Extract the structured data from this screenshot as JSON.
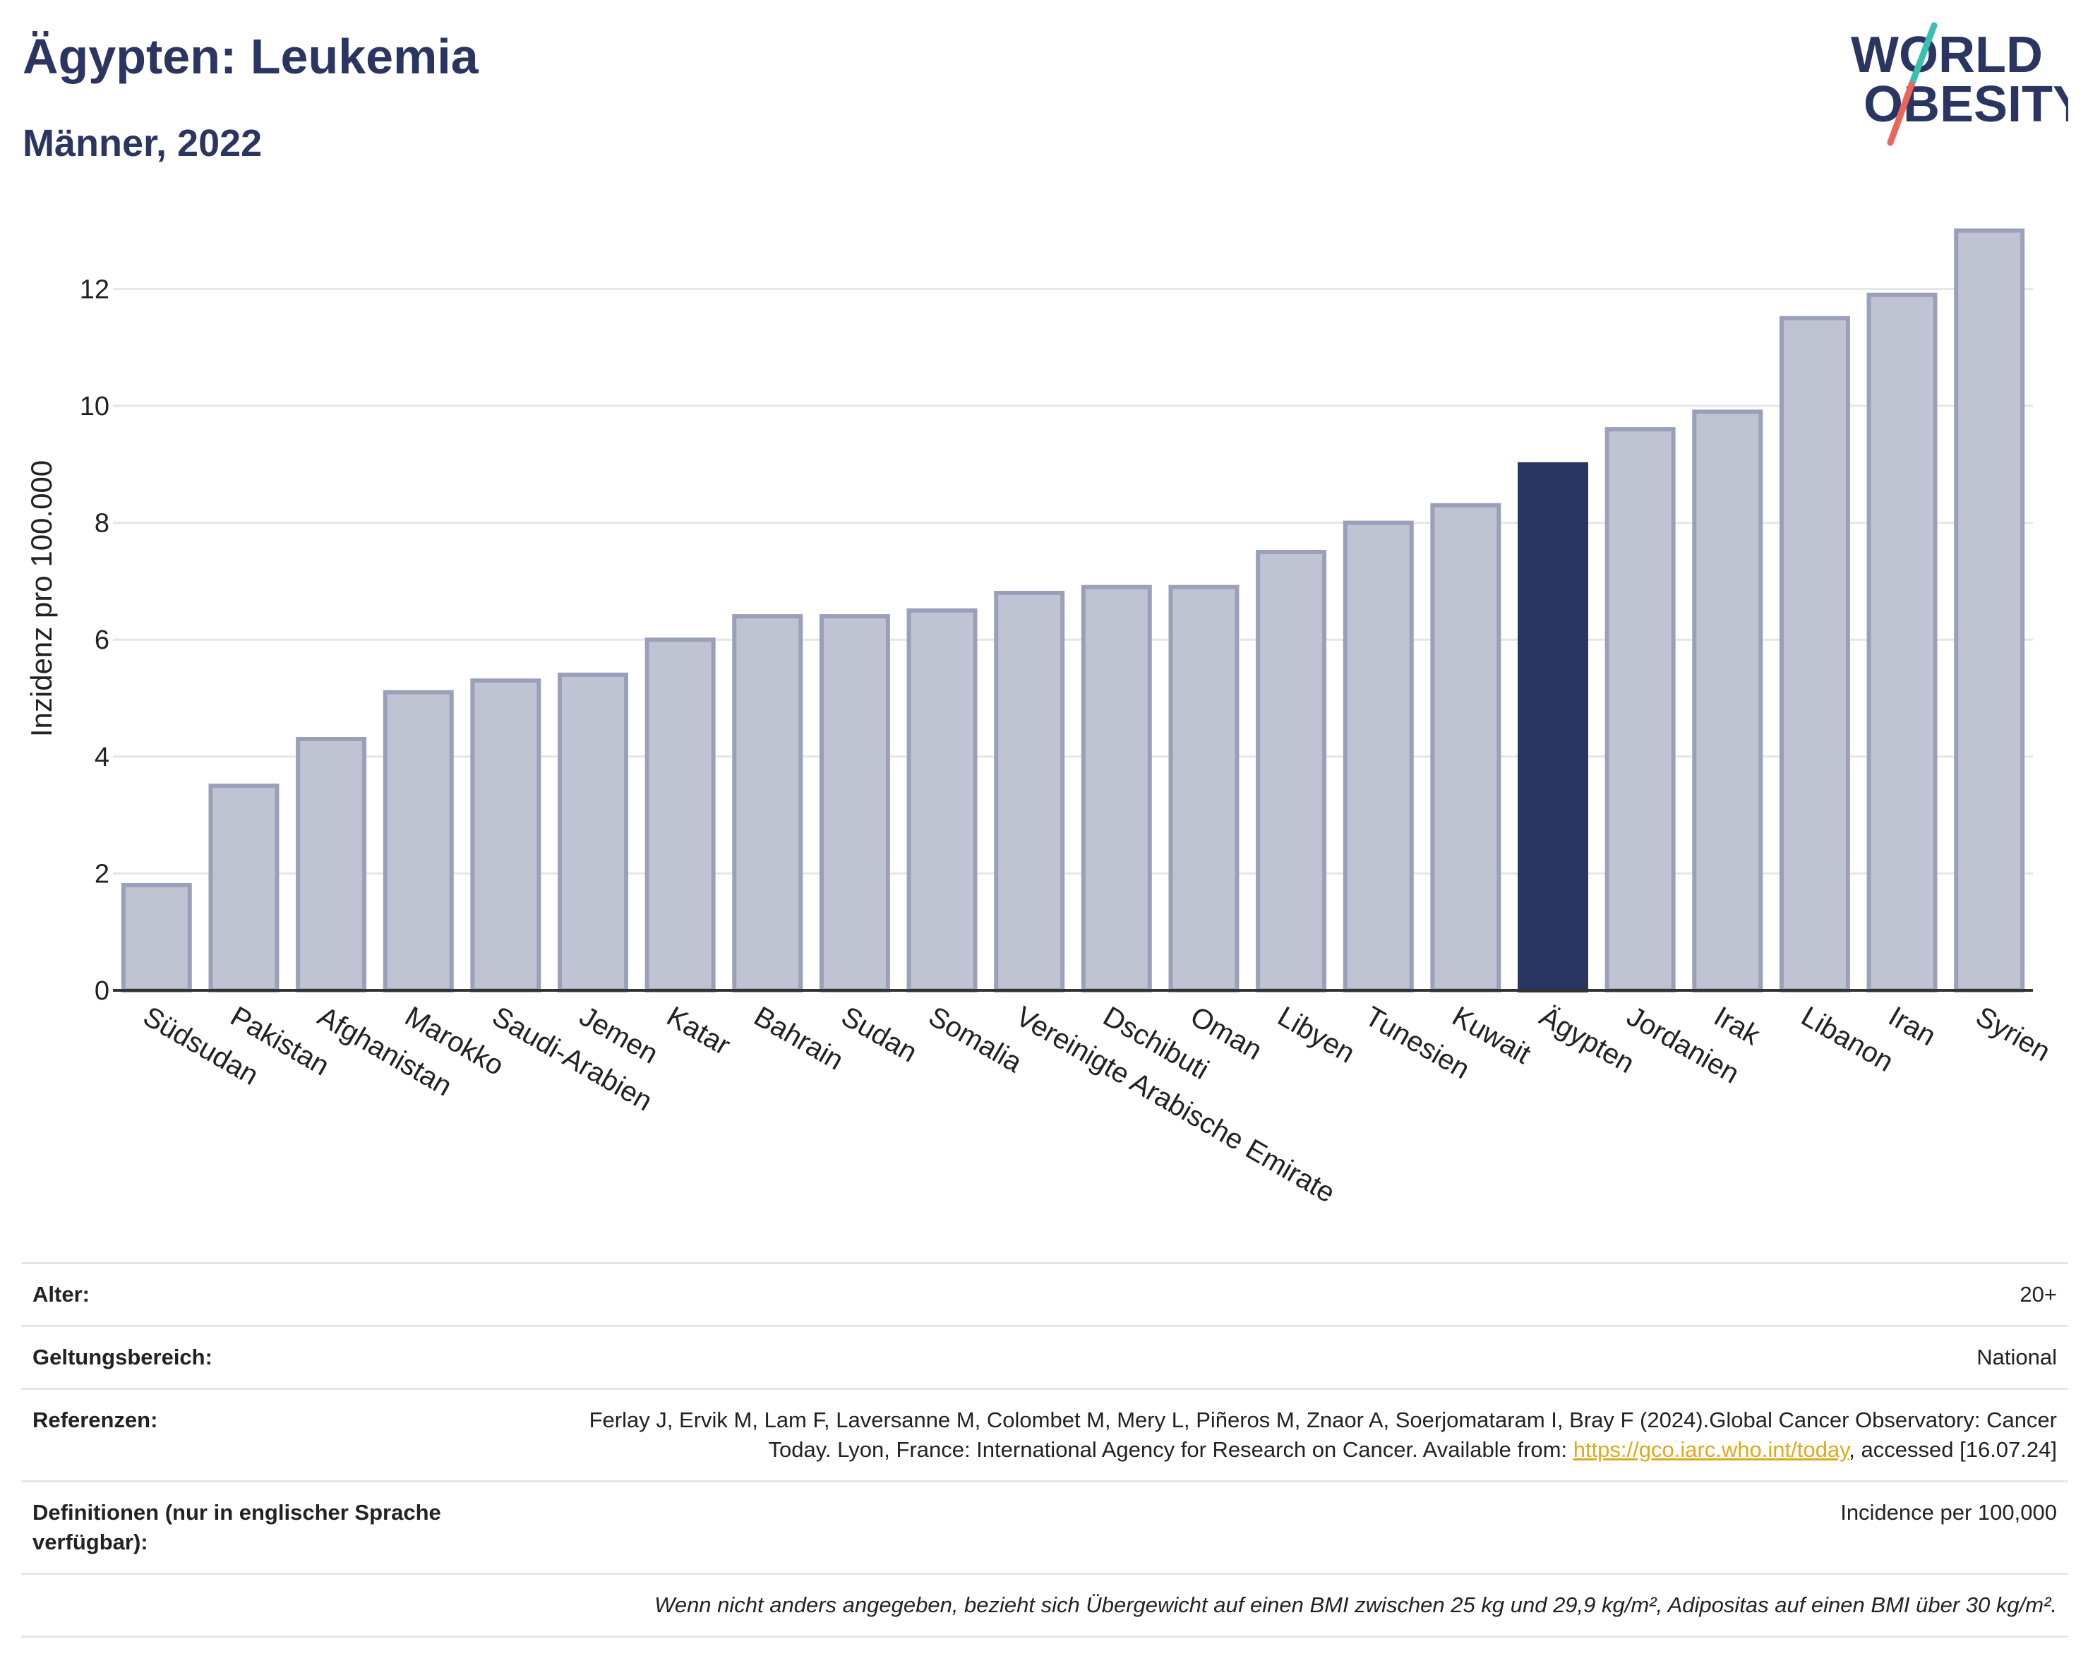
{
  "header": {
    "title": "Ägypten: Leukemia",
    "subtitle": "Männer, 2022"
  },
  "logo": {
    "line1": "WORLD",
    "line2": "OBESITY",
    "colors": {
      "text": "#2b3562",
      "slash_top": "#3bbfb0",
      "slash_bottom": "#e8665a"
    }
  },
  "colors": {
    "bar_default": "#c0c4d2",
    "bar_default_stroke": "#9aa0ba",
    "bar_highlight": "#2b3562",
    "grid": "#e6e6e6",
    "axis": "#333333"
  },
  "chart_data": {
    "type": "bar",
    "ylabel": "Inzidenz pro 100.000",
    "xlabel": "",
    "ylim": [
      0,
      13.5
    ],
    "yticks": [
      0,
      2,
      4,
      6,
      8,
      10,
      12
    ],
    "grid": true,
    "highlight": "Ägypten",
    "categories": [
      "Südsudan",
      "Pakistan",
      "Afghanistan",
      "Marokko",
      "Saudi-Arabien",
      "Jemen",
      "Katar",
      "Bahrain",
      "Sudan",
      "Somalia",
      "Vereinigte Arabische Emirate",
      "Dschibuti",
      "Oman",
      "Libyen",
      "Tunesien",
      "Kuwait",
      "Ägypten",
      "Jordanien",
      "Irak",
      "Libanon",
      "Iran",
      "Syrien"
    ],
    "values": [
      1.8,
      3.5,
      4.3,
      5.1,
      5.3,
      5.4,
      6.0,
      6.4,
      6.4,
      6.5,
      6.8,
      6.9,
      6.9,
      7.5,
      8.0,
      8.3,
      9.0,
      9.6,
      9.9,
      11.5,
      11.9,
      13.0
    ]
  },
  "info": {
    "age_label": "Alter:",
    "age_value": "20+",
    "scope_label": "Geltungsbereich:",
    "scope_value": "National",
    "refs_label": "Referenzen:",
    "refs_text_1": "Ferlay J, Ervik M, Lam F, Laversanne M, Colombet M, Mery L, Piñeros M, Znaor A, Soerjomataram I, Bray F (2024).Global Cancer Observatory: Cancer Today. Lyon, France: International Agency for Research on Cancer. Available from: ",
    "refs_link": "https://gco.iarc.who.int/today",
    "refs_text_2": ", accessed [16.07.24]",
    "defs_label": "Definitionen (nur in englischer Sprache verfügbar):",
    "defs_value": "Incidence per 100,000",
    "note": "Wenn nicht anders angegeben, bezieht sich Übergewicht auf einen BMI zwischen 25 kg und 29,9 kg/m², Adipositas auf einen BMI über 30 kg/m²."
  }
}
